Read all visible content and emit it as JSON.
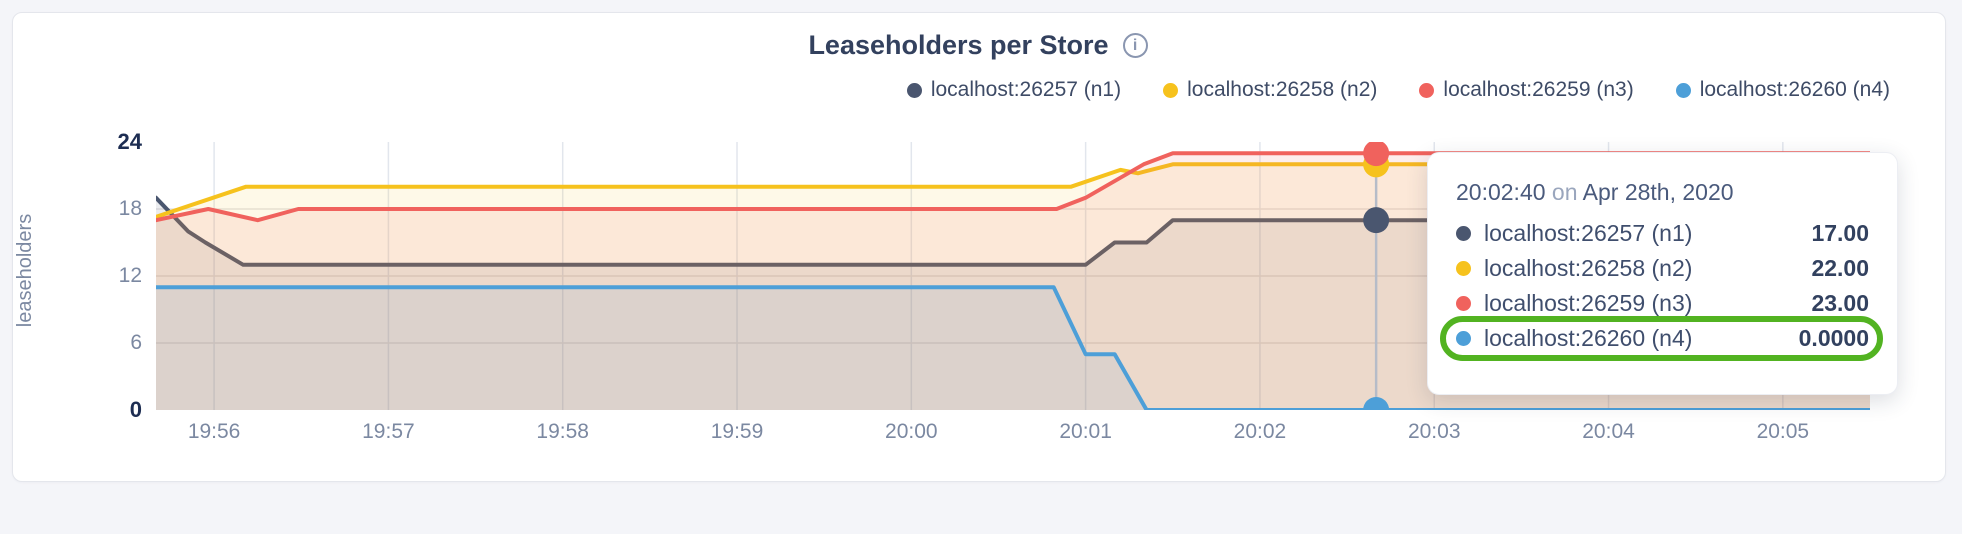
{
  "header": {
    "title": "Leaseholders per Store",
    "info_glyph": "i"
  },
  "chart_data": {
    "type": "area",
    "title": "Leaseholders per Store",
    "ylabel": "leaseholders",
    "ylim": [
      0,
      24
    ],
    "x_domain_seconds": [
      0,
      590
    ],
    "x_start_time": "19:55:40",
    "grid": "on",
    "legend_position": "top-right",
    "y_ticks": [
      {
        "v": 0,
        "label": "0",
        "bold": true
      },
      {
        "v": 6,
        "label": "6",
        "bold": false
      },
      {
        "v": 12,
        "label": "12",
        "bold": false
      },
      {
        "v": 18,
        "label": "18",
        "bold": false
      },
      {
        "v": 24,
        "label": "24",
        "bold": true
      }
    ],
    "y_gridlines": [
      6,
      12,
      18
    ],
    "x_ticks": [
      {
        "t": 20,
        "label": "19:56"
      },
      {
        "t": 80,
        "label": "19:57"
      },
      {
        "t": 140,
        "label": "19:58"
      },
      {
        "t": 200,
        "label": "19:59"
      },
      {
        "t": 260,
        "label": "20:00"
      },
      {
        "t": 320,
        "label": "20:01"
      },
      {
        "t": 380,
        "label": "20:02"
      },
      {
        "t": 440,
        "label": "20:03"
      },
      {
        "t": 500,
        "label": "20:04"
      },
      {
        "t": 560,
        "label": "20:05"
      }
    ],
    "series": [
      {
        "name": "localhost:26257 (n1)",
        "color": "#4a566f",
        "fill_opacity": 0.11,
        "points": [
          [
            0,
            19
          ],
          [
            11,
            16
          ],
          [
            17,
            15
          ],
          [
            30,
            13
          ],
          [
            320,
            13
          ],
          [
            330,
            15
          ],
          [
            341,
            15
          ],
          [
            350,
            17
          ],
          [
            590,
            17
          ]
        ],
        "hover_value": 17,
        "hover_value_label": "17.00"
      },
      {
        "name": "localhost:26258 (n2)",
        "color": "#f6c21d",
        "fill_opacity": 0.1,
        "points": [
          [
            0,
            17.3
          ],
          [
            31,
            20
          ],
          [
            315,
            20
          ],
          [
            332,
            21.5
          ],
          [
            338,
            21.2
          ],
          [
            350,
            22
          ],
          [
            590,
            22
          ]
        ],
        "hover_value": 22,
        "hover_value_label": "22.00"
      },
      {
        "name": "localhost:26259 (n3)",
        "color": "#f0625d",
        "fill_opacity": 0.11,
        "points": [
          [
            0,
            17
          ],
          [
            18,
            18
          ],
          [
            35,
            17
          ],
          [
            49,
            18
          ],
          [
            310,
            18
          ],
          [
            320,
            19
          ],
          [
            340,
            22
          ],
          [
            350,
            23
          ],
          [
            590,
            23
          ]
        ],
        "hover_value": 23,
        "hover_value_label": "23.00"
      },
      {
        "name": "localhost:26260 (n4)",
        "color": "#4d9fd8",
        "fill_opacity": 0.1,
        "points": [
          [
            0,
            11
          ],
          [
            309,
            11
          ],
          [
            320,
            5
          ],
          [
            330,
            5
          ],
          [
            341,
            0
          ],
          [
            590,
            0
          ]
        ],
        "hover_value": 0,
        "hover_value_label": "0.0000"
      }
    ],
    "hover": {
      "t": 420,
      "time": "20:02:40",
      "guideline_color": "#b6bcc8",
      "dot_radius": 13
    }
  },
  "tooltip": {
    "time": "20:02:40",
    "connector": "on",
    "date": "Apr 28th, 2020",
    "highlighted_row_index": 3,
    "highlight_color": "#52b321"
  },
  "style": {
    "vertical_grid_color": "#e2e6ed",
    "horizontal_grid_color": "#e6e3e5"
  }
}
